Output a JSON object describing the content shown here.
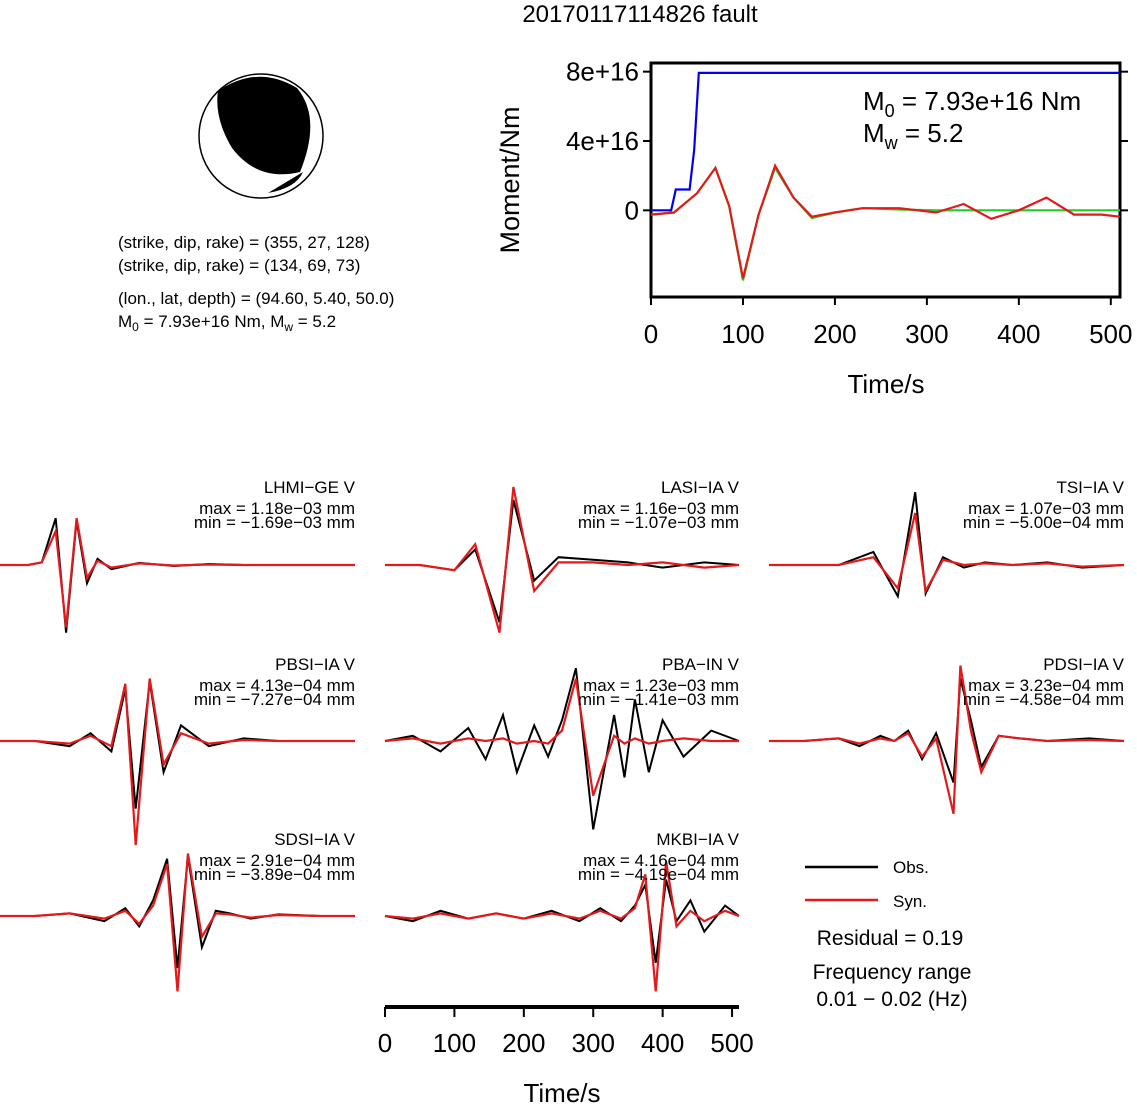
{
  "figure": {
    "title": "20170117114826 fault",
    "mechanism": {
      "line1": "(strike, dip, rake) = (355, 27, 128)",
      "line2": "(strike, dip, rake) = (134, 69, 73)",
      "location": "(lon., lat, depth) = (94.60, 5.40, 50.0)",
      "mag_main": "M",
      "mag_sub0": "0",
      "mag_mid": " = 7.93e+16 Nm, M",
      "mag_subw": "w",
      "mag_end": " = 5.2"
    },
    "moment": {
      "ylabel": "Moment/Nm",
      "xlabel": "Time/s",
      "m0_main": "M",
      "m0_sub": "0",
      "m0_rest": " = 7.93e+16 Nm",
      "mw_main": "M",
      "mw_sub": "w",
      "mw_rest": " = 5.2"
    },
    "waveforms": {
      "xlabel": "Time/s"
    },
    "legend": {
      "obs": "Obs.",
      "syn": "Syn.",
      "residual": "Residual = 0.19",
      "freq_label": "Frequency range",
      "freq_value": "0.01 − 0.02 (Hz)"
    }
  },
  "colors": {
    "observed": "#000000",
    "synthetic": "#e31a1c",
    "moment_cumulative": "#0000ee",
    "moment_rate_green": "#22cc22",
    "moment_rate_red": "#e31a1c"
  },
  "chart_data": [
    {
      "type": "line",
      "name": "moment",
      "xlim": [
        0,
        510
      ],
      "ylim": [
        -5e+16,
        8.5e+16
      ],
      "xticks": [
        "0",
        "100",
        "200",
        "300",
        "400",
        "500"
      ],
      "yticks": [
        "0",
        "4e+16",
        "8e+16"
      ],
      "series": [
        {
          "name": "cumulative",
          "x": [
            0,
            22,
            27,
            42,
            47,
            52,
            55,
            510
          ],
          "y": [
            0,
            0,
            1.2e+16,
            1.2e+16,
            3.5e+16,
            7.93e+16,
            7.93e+16,
            7.93e+16
          ]
        },
        {
          "name": "rate_green",
          "x": [
            0,
            25,
            50,
            70,
            85,
            100,
            117,
            135,
            155,
            175,
            200,
            230,
            270,
            310,
            360,
            410,
            460,
            510
          ],
          "y": [
            -0.1,
            -0.05,
            0.4,
            1.0,
            0.1,
            -1.65,
            -0.1,
            1.0,
            0.3,
            -0.18,
            -0.05,
            0.05,
            0.02,
            0,
            0,
            0,
            0,
            0
          ]
        },
        {
          "name": "rate_red",
          "x": [
            0,
            25,
            50,
            70,
            85,
            100,
            117,
            135,
            155,
            175,
            200,
            230,
            270,
            310,
            340,
            370,
            400,
            430,
            460,
            490,
            510
          ],
          "y": [
            -0.1,
            -0.05,
            0.4,
            1.0,
            0.1,
            -1.6,
            -0.1,
            1.05,
            0.3,
            -0.15,
            -0.05,
            0.05,
            0.05,
            -0.05,
            0.15,
            -0.2,
            0,
            0.3,
            -0.1,
            -0.1,
            -0.15
          ]
        }
      ]
    },
    {
      "type": "line",
      "name": "waveforms",
      "xlim": [
        0,
        510
      ],
      "xticks": [
        "0",
        "100",
        "200",
        "300",
        "400",
        "500"
      ],
      "stations": [
        {
          "name": "LHMI−GE V",
          "max": "max = 1.18e−03 mm",
          "min": "min = −1.69e−03 mm",
          "obs": {
            "x": [
              0,
              40,
              60,
              80,
              95,
              110,
              125,
              140,
              160,
              200,
              250,
              300,
              350,
              510
            ],
            "y": [
              0,
              0,
              0.05,
              0.9,
              -1.3,
              0.85,
              -0.35,
              0.12,
              -0.08,
              0.04,
              -0.02,
              0.02,
              0,
              0
            ]
          },
          "syn": {
            "x": [
              0,
              40,
              60,
              80,
              95,
              110,
              125,
              140,
              160,
              200,
              250,
              300,
              350,
              510
            ],
            "y": [
              0,
              0,
              0.05,
              0.65,
              -1.2,
              0.9,
              -0.25,
              0.08,
              -0.05,
              0.03,
              -0.01,
              0.01,
              0,
              0
            ]
          }
        },
        {
          "name": "LASI−IA V",
          "max": "max = 1.16e−03 mm",
          "min": "min = −1.07e−03 mm",
          "obs": {
            "x": [
              0,
              50,
              100,
              130,
              165,
              185,
              215,
              250,
              300,
              350,
              400,
              460,
              510
            ],
            "y": [
              0,
              0,
              -0.1,
              0.3,
              -1.1,
              1.25,
              -0.3,
              0.15,
              0.1,
              0.05,
              -0.05,
              0.05,
              0
            ]
          },
          "syn": {
            "x": [
              0,
              50,
              100,
              130,
              165,
              185,
              215,
              250,
              300,
              350,
              400,
              460,
              510
            ],
            "y": [
              0,
              0,
              -0.1,
              0.4,
              -1.3,
              1.5,
              -0.5,
              0.05,
              0.05,
              0,
              0.05,
              -0.05,
              0
            ]
          }
        },
        {
          "name": "TSI−IA V",
          "max": "max = 1.07e−03 mm",
          "min": "min = −5.00e−04 mm",
          "obs": {
            "x": [
              0,
              100,
              150,
              185,
              210,
              225,
              250,
              280,
              310,
              350,
              400,
              450,
              510
            ],
            "y": [
              0,
              0,
              0.25,
              -0.6,
              1.4,
              -0.55,
              0.15,
              -0.05,
              0.05,
              0,
              0.05,
              -0.05,
              0
            ]
          },
          "syn": {
            "x": [
              0,
              100,
              150,
              185,
              210,
              225,
              250,
              280,
              310,
              350,
              400,
              450,
              510
            ],
            "y": [
              0,
              0,
              0.15,
              -0.45,
              1.0,
              -0.5,
              0.1,
              0,
              0.03,
              0,
              0.03,
              -0.03,
              0
            ]
          }
        },
        {
          "name": "PBSI−IA V",
          "max": "max = 4.13e−04 mm",
          "min": "min = −7.27e−04 mm",
          "obs": {
            "x": [
              0,
              50,
              100,
              130,
              160,
              180,
              195,
              215,
              235,
              260,
              300,
              350,
              400,
              510
            ],
            "y": [
              0,
              0,
              -0.1,
              0.15,
              -0.2,
              1.0,
              -1.3,
              1.15,
              -0.6,
              0.3,
              -0.1,
              0.05,
              0,
              0
            ]
          },
          "syn": {
            "x": [
              0,
              50,
              100,
              130,
              160,
              180,
              195,
              215,
              235,
              260,
              300,
              350,
              400,
              510
            ],
            "y": [
              0,
              0,
              -0.05,
              0.1,
              -0.1,
              1.1,
              -2.0,
              1.2,
              -0.45,
              0.15,
              -0.05,
              0.02,
              0,
              0
            ]
          }
        },
        {
          "name": "PBA−IN V",
          "max": "max = 1.23e−03 mm",
          "min": "min = −1.41e−03 mm",
          "obs": {
            "x": [
              0,
              40,
              80,
              120,
              145,
              170,
              190,
              215,
              235,
              255,
              275,
              300,
              330,
              345,
              360,
              380,
              400,
              430,
              470,
              510
            ],
            "y": [
              0,
              0.1,
              -0.2,
              0.25,
              -0.35,
              0.5,
              -0.6,
              0.3,
              -0.3,
              0.4,
              1.4,
              -1.7,
              0.5,
              -0.7,
              0.8,
              -0.6,
              0.4,
              -0.3,
              0.2,
              0
            ]
          },
          "syn": {
            "x": [
              0,
              40,
              80,
              120,
              145,
              170,
              190,
              215,
              235,
              255,
              275,
              300,
              330,
              345,
              360,
              380,
              400,
              430,
              470,
              510
            ],
            "y": [
              0,
              0.05,
              -0.05,
              0.05,
              0,
              0.05,
              -0.05,
              0,
              -0.05,
              0.2,
              1.2,
              -1.05,
              0.1,
              -0.05,
              0.05,
              -0.05,
              0,
              0.05,
              0,
              0
            ]
          }
        },
        {
          "name": "PDSI−IA V",
          "max": "max = 3.23e−04 mm",
          "min": "min = −4.58e−04 mm",
          "obs": {
            "x": [
              0,
              50,
              100,
              130,
              160,
              180,
              200,
              220,
              240,
              265,
              275,
              290,
              305,
              330,
              360,
              400,
              460,
              510
            ],
            "y": [
              0,
              0,
              0.05,
              -0.1,
              0.1,
              0,
              0.2,
              -0.35,
              0.15,
              -0.8,
              1.2,
              0.4,
              -0.5,
              0.1,
              0.05,
              0,
              0.05,
              0
            ]
          },
          "syn": {
            "x": [
              0,
              50,
              100,
              130,
              160,
              180,
              200,
              220,
              240,
              265,
              275,
              290,
              305,
              330,
              360,
              400,
              460,
              510
            ],
            "y": [
              0,
              0,
              0.05,
              -0.05,
              0.05,
              0,
              0.15,
              -0.3,
              0.05,
              -1.4,
              1.45,
              0.2,
              -0.6,
              0.1,
              0.05,
              0,
              0.02,
              0
            ]
          }
        },
        {
          "name": "SDSI−IA V",
          "max": "max = 2.91e−04 mm",
          "min": "min = −3.89e−04 mm",
          "obs": {
            "x": [
              0,
              50,
              100,
              150,
              180,
              200,
              220,
              240,
              255,
              270,
              290,
              310,
              330,
              360,
              400,
              460,
              510
            ],
            "y": [
              0,
              0,
              0.05,
              -0.1,
              0.15,
              -0.2,
              0.3,
              1.1,
              -1.0,
              1.15,
              -0.6,
              0.1,
              0.05,
              -0.05,
              0.03,
              0,
              0
            ]
          },
          "syn": {
            "x": [
              0,
              50,
              100,
              150,
              180,
              200,
              220,
              240,
              255,
              270,
              290,
              310,
              330,
              360,
              400,
              460,
              510
            ],
            "y": [
              0,
              0,
              0.05,
              -0.05,
              0.1,
              -0.15,
              0.2,
              1.0,
              -1.45,
              1.2,
              -0.4,
              0.05,
              0.03,
              -0.03,
              0.02,
              0,
              0
            ]
          }
        },
        {
          "name": "MKBI−IA V",
          "max": "max = 4.16e−04 mm",
          "min": "min = −4.19e−04 mm",
          "obs": {
            "x": [
              0,
              40,
              80,
              120,
              160,
              200,
              240,
              280,
              310,
              340,
              360,
              375,
              390,
              405,
              420,
              440,
              460,
              490,
              510
            ],
            "y": [
              0,
              -0.1,
              0.1,
              -0.05,
              0.05,
              -0.05,
              0.1,
              -0.1,
              0.15,
              -0.1,
              0.2,
              0.6,
              -0.9,
              0.7,
              -0.1,
              0.3,
              -0.3,
              0.2,
              0
            ]
          },
          "syn": {
            "x": [
              0,
              40,
              80,
              120,
              160,
              200,
              240,
              280,
              310,
              340,
              360,
              375,
              390,
              405,
              420,
              440,
              460,
              490,
              510
            ],
            "y": [
              0,
              -0.05,
              0.05,
              -0.05,
              0.05,
              -0.05,
              0.05,
              -0.05,
              0.1,
              -0.05,
              0.15,
              0.8,
              -1.45,
              1.05,
              -0.2,
              0.1,
              -0.1,
              0.1,
              0
            ]
          }
        }
      ]
    }
  ]
}
